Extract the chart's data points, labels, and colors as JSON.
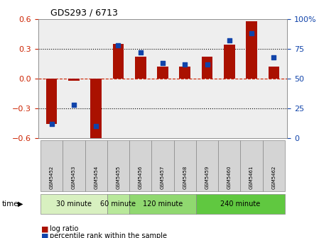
{
  "title": "GDS293 / 6713",
  "samples": [
    "GSM5452",
    "GSM5453",
    "GSM5454",
    "GSM5455",
    "GSM5456",
    "GSM5457",
    "GSM5458",
    "GSM5459",
    "GSM5460",
    "GSM5461",
    "GSM5462"
  ],
  "log_ratio": [
    -0.46,
    -0.02,
    -0.6,
    0.35,
    0.22,
    0.12,
    0.12,
    0.22,
    0.34,
    0.58,
    0.12
  ],
  "percentile_rank": [
    12,
    28,
    10,
    78,
    72,
    63,
    62,
    62,
    82,
    88,
    68
  ],
  "bar_color": "#AA1100",
  "dot_color": "#1144AA",
  "ylim": [
    -0.6,
    0.6
  ],
  "y2lim": [
    0,
    100
  ],
  "yticks": [
    -0.6,
    -0.3,
    0.0,
    0.3,
    0.6
  ],
  "y2ticks": [
    0,
    25,
    50,
    75,
    100
  ],
  "groups": [
    {
      "label": "30 minute",
      "start": 0,
      "end": 3,
      "color": "#d8f0c0"
    },
    {
      "label": "60 minute",
      "start": 3,
      "end": 4,
      "color": "#b8e89a"
    },
    {
      "label": "120 minute",
      "start": 4,
      "end": 7,
      "color": "#90d870"
    },
    {
      "label": "240 minute",
      "start": 7,
      "end": 11,
      "color": "#60c840"
    }
  ],
  "time_label": "time",
  "legend_log_ratio": "log ratio",
  "legend_percentile": "percentile rank within the sample",
  "bg_color": "#ffffff",
  "zero_line_color": "#cc2200",
  "plot_bg": "#eeeeee"
}
